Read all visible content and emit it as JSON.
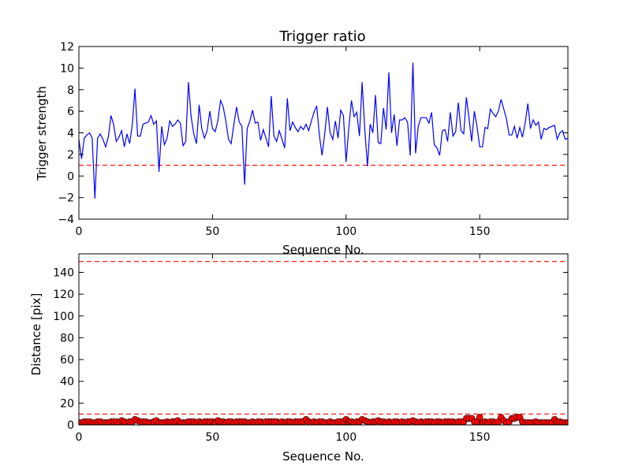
{
  "chart_data": [
    {
      "type": "line",
      "title": "Trigger ratio",
      "xlabel": "Sequence No.",
      "ylabel": "Trigger strength",
      "xlim": [
        0,
        183
      ],
      "ylim": [
        -4,
        12
      ],
      "xticks": [
        "0",
        "50",
        "100",
        "150"
      ],
      "yticks": [
        "−4",
        "−2",
        "0",
        "2",
        "4",
        "6",
        "8",
        "10",
        "12"
      ],
      "grid": false,
      "line_color": "#0000ff",
      "threshold": {
        "value": 1.0,
        "color": "#ff0000",
        "style": "dashed"
      },
      "series": [
        {
          "values": [
            3.4,
            1.6,
            3.5,
            3.8,
            4.0,
            3.5,
            -2.1,
            3.5,
            3.9,
            3.4,
            2.7,
            3.6,
            5.6,
            4.8,
            3.2,
            3.6,
            4.2,
            2.7,
            3.9,
            3.0,
            4.8,
            8.1,
            3.7,
            3.7,
            4.8,
            4.9,
            5.0,
            5.6,
            4.8,
            5.1,
            0.4,
            4.6,
            2.9,
            3.5,
            5.1,
            4.6,
            4.8,
            5.2,
            4.9,
            2.8,
            3.2,
            8.7,
            5.5,
            3.9,
            3.0,
            6.6,
            4.4,
            3.5,
            4.2,
            6.0,
            4.4,
            4.1,
            5.1,
            7.0,
            6.4,
            5.1,
            3.4,
            3.0,
            4.8,
            6.4,
            5.0,
            4.6,
            -0.8,
            4.4,
            5.1,
            6.1,
            4.9,
            5.0,
            3.3,
            4.3,
            3.5,
            2.7,
            7.4,
            3.7,
            3.2,
            4.2,
            3.4,
            2.6,
            7.2,
            4.2,
            5.0,
            4.5,
            4.1,
            4.6,
            4.3,
            4.8,
            4.2,
            5.1,
            5.9,
            6.5,
            3.8,
            1.9,
            3.9,
            6.4,
            4.0,
            3.4,
            5.1,
            3.5,
            6.1,
            5.6,
            1.3,
            4.4,
            7.0,
            5.5,
            5.9,
            3.7,
            8.7,
            4.3,
            0.9,
            4.8,
            4.0,
            7.5,
            3.1,
            3.0,
            6.3,
            4.3,
            9.6,
            4.0,
            5.7,
            2.8,
            5.2,
            5.2,
            5.4,
            5.0,
            1.9,
            10.5,
            2.1,
            4.6,
            5.4,
            5.4,
            5.4,
            4.9,
            5.9,
            2.9,
            2.6,
            1.9,
            4.2,
            4.3,
            3.2,
            5.9,
            3.7,
            4.1,
            6.8,
            4.2,
            3.9,
            7.3,
            5.4,
            3.2,
            6.0,
            4.6,
            2.7,
            2.7,
            4.5,
            4.4,
            6.2,
            5.8,
            5.5,
            6.0,
            7.1,
            6.2,
            5.3,
            3.8,
            3.8,
            4.6,
            3.5,
            4.5,
            3.6,
            4.9,
            6.7,
            4.4,
            5.2,
            4.7,
            5.0,
            3.4,
            4.4,
            4.3,
            4.5,
            4.6,
            4.7,
            3.4,
            4.0,
            4.2,
            3.4,
            3.5
          ]
        }
      ]
    },
    {
      "type": "scatter",
      "title": "",
      "xlabel": "Sequence No.",
      "ylabel": "Distance [pix]",
      "xlim": [
        0,
        183
      ],
      "ylim": [
        0,
        157
      ],
      "xticks": [
        "0",
        "50",
        "100",
        "150"
      ],
      "yticks": [
        "0",
        "20",
        "40",
        "60",
        "80",
        "100",
        "120",
        "140"
      ],
      "grid": false,
      "marker_color": "#ff0000",
      "thresholds": [
        {
          "value": 10,
          "color": "#ff0000",
          "style": "dashed"
        },
        {
          "value": 150,
          "color": "#ff0000",
          "style": "dashed"
        }
      ],
      "series": [
        {
          "values": [
            2,
            2,
            3,
            3,
            3,
            2,
            2,
            3,
            3,
            2,
            2,
            2,
            3,
            3,
            3,
            2,
            4,
            3,
            2,
            3,
            3,
            5,
            4,
            3,
            3,
            3,
            2,
            2,
            3,
            4,
            2,
            2,
            2,
            3,
            2,
            3,
            3,
            4,
            2,
            2,
            2,
            3,
            3,
            3,
            2,
            3,
            2,
            3,
            3,
            3,
            3,
            2,
            4,
            3,
            3,
            2,
            3,
            3,
            2,
            3,
            3,
            3,
            3,
            2,
            2,
            3,
            2,
            3,
            3,
            2,
            3,
            3,
            3,
            3,
            3,
            2,
            3,
            2,
            3,
            3,
            2,
            3,
            3,
            3,
            3,
            5,
            3,
            2,
            3,
            2,
            3,
            3,
            2,
            2,
            3,
            2,
            2,
            3,
            3,
            3,
            5,
            3,
            3,
            2,
            3,
            3,
            5,
            4,
            3,
            2,
            3,
            3,
            4,
            3,
            3,
            2,
            3,
            2,
            3,
            3,
            2,
            3,
            2,
            3,
            3,
            4,
            3,
            2,
            3,
            2,
            3,
            3,
            3,
            2,
            3,
            3,
            2,
            3,
            3,
            3,
            3,
            2,
            3,
            3,
            3,
            6,
            6,
            6,
            3,
            3,
            7,
            2,
            3,
            2,
            3,
            3,
            2,
            3,
            7,
            4,
            2,
            3,
            6,
            6,
            7,
            7,
            3,
            2,
            2,
            2,
            2,
            3,
            2,
            2,
            2,
            2,
            2,
            2,
            5,
            3,
            3,
            2,
            2,
            2
          ]
        }
      ]
    }
  ]
}
